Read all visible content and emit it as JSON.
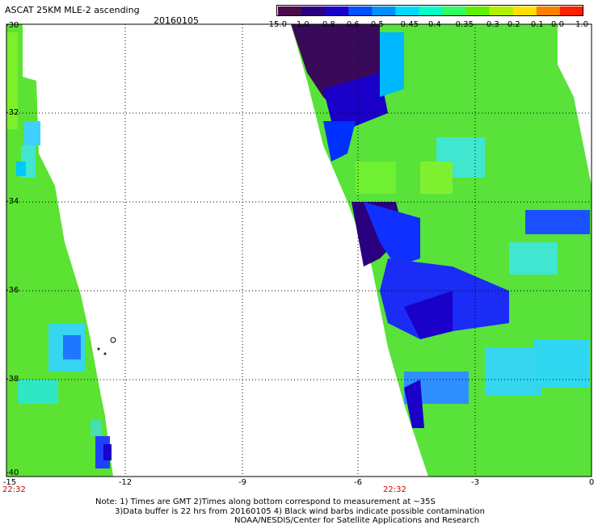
{
  "header": {
    "title": "ASCAT 25KM MLE-2 ascending",
    "date": "20160105"
  },
  "colorbar": {
    "labels": [
      "-15.0",
      "-1.0",
      "-0.8",
      "-0.6",
      "-0.5",
      "-0.45",
      "-0.4",
      "-0.35",
      "-0.3",
      "-0.2",
      "-0.1",
      "0.0",
      "1.0"
    ],
    "colors": [
      "#4b0a4b",
      "#2a0080",
      "#1a00c8",
      "#0050ff",
      "#0090ff",
      "#00d8ff",
      "#00ffc0",
      "#30ff60",
      "#60f000",
      "#b0f000",
      "#ffe000",
      "#ff8000",
      "#ff2000"
    ]
  },
  "axes": {
    "x_ticks": [
      "-15",
      "-12",
      "-9",
      "-6",
      "-3",
      "0"
    ],
    "y_ticks": [
      "-30",
      "-32",
      "-34",
      "-36",
      "-38",
      "-40"
    ]
  },
  "time_labels": [
    "22:32",
    "22:32"
  ],
  "notes": {
    "line1": "Note: 1) Times are GMT 2)Times along bottom correspond to measurement at ~35S",
    "line2": "3)Data buffer is 22 hrs from 20160105 4) Black wind barbs indicate possible contamination",
    "line3": "NOAA/NESDIS/Center for Satellite Applications and Research"
  }
}
